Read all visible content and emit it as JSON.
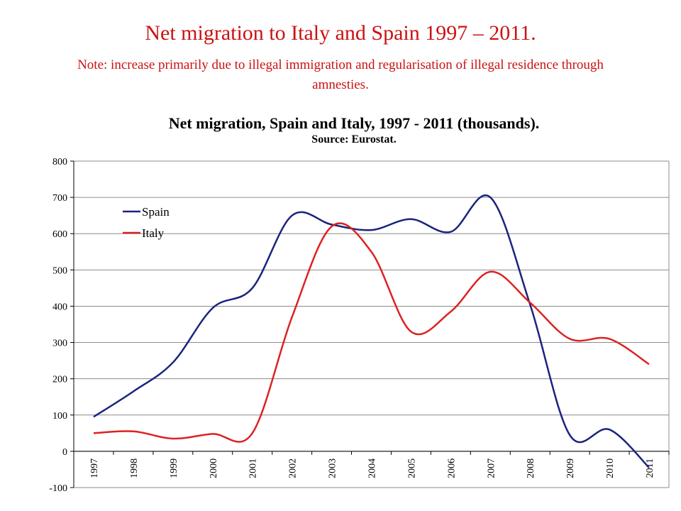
{
  "slide": {
    "title": "Net migration to Italy and Spain 1997 – 2011.",
    "note": "Note: increase primarily due to illegal immigration and regularisation of illegal residence through amnesties."
  },
  "chart_data": {
    "type": "line",
    "title": "Net migration, Spain and Italy, 1997 - 2011 (thousands).",
    "subtitle": "Source: Eurostat.",
    "xlabel": "",
    "ylabel": "",
    "categories": [
      "1997",
      "1998",
      "1999",
      "2000",
      "2001",
      "2002",
      "2003",
      "2004",
      "2005",
      "2006",
      "2007",
      "2008",
      "2009",
      "2010",
      "2011"
    ],
    "ylim": [
      -100,
      800
    ],
    "yticks": [
      -100,
      0,
      100,
      200,
      300,
      400,
      500,
      600,
      700,
      800
    ],
    "grid": true,
    "legend_position": "top-left",
    "series": [
      {
        "name": "Spain",
        "color": "#1a237e",
        "values": [
          95,
          165,
          245,
          395,
          450,
          650,
          625,
          610,
          640,
          605,
          700,
          405,
          45,
          60,
          -45
        ]
      },
      {
        "name": "Italy",
        "color": "#dd2222",
        "values": [
          50,
          55,
          35,
          48,
          50,
          370,
          620,
          550,
          330,
          385,
          495,
          410,
          310,
          310,
          240
        ]
      }
    ]
  }
}
